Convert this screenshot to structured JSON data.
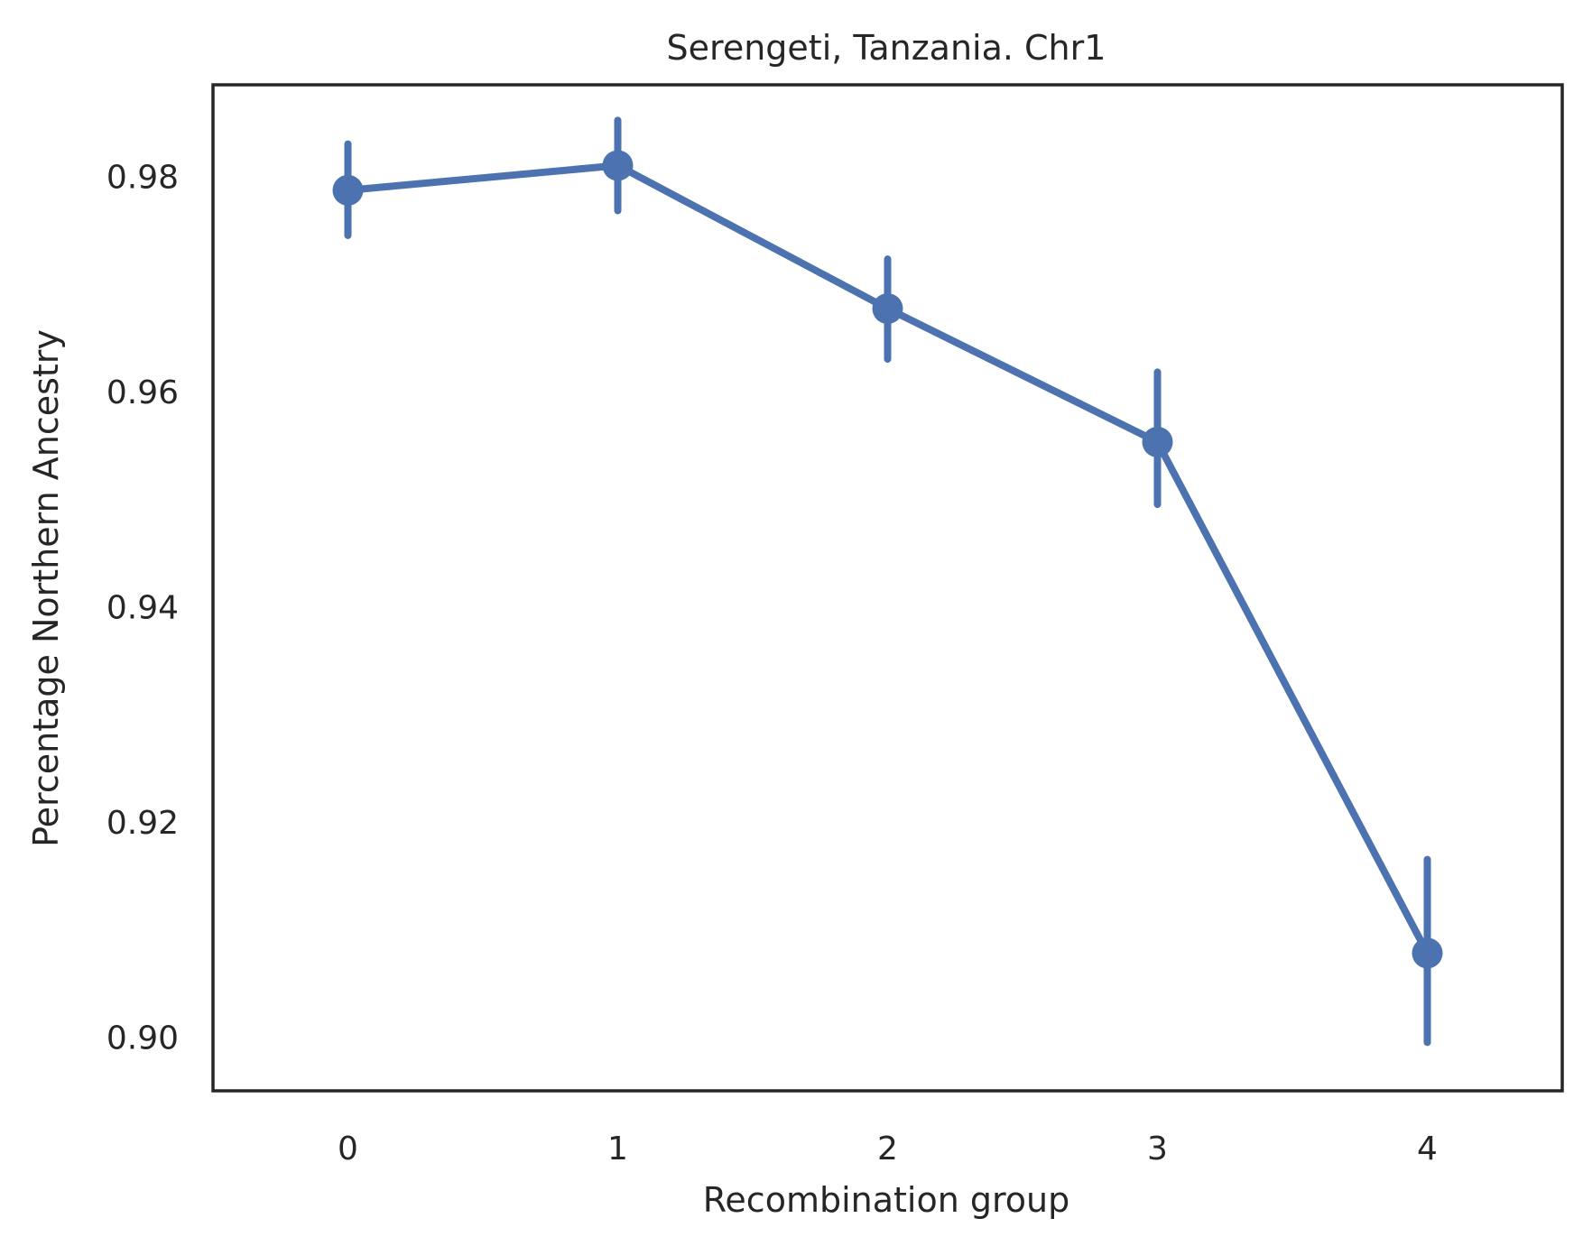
{
  "chart_data": {
    "type": "line",
    "title": "Serengeti, Tanzania. Chr1",
    "xlabel": "Recombination group",
    "ylabel": "Percentage Northern Ancestry",
    "x": [
      "0",
      "1",
      "2",
      "3",
      "4"
    ],
    "series": [
      {
        "values": [
          0.9787,
          0.981,
          0.9677,
          0.9553,
          0.9078
        ],
        "ci_low": [
          0.9745,
          0.9768,
          0.963,
          0.9495,
          0.8995
        ],
        "ci_high": [
          0.983,
          0.9852,
          0.9723,
          0.9618,
          0.9165
        ],
        "color": "#4c72b0"
      }
    ],
    "yticks": [
      "0.90",
      "0.92",
      "0.94",
      "0.96",
      "0.98"
    ],
    "ylim": [
      0.895,
      0.9885
    ],
    "xlim": [
      -0.5,
      4.5
    ],
    "grid": false,
    "legend": "none"
  }
}
